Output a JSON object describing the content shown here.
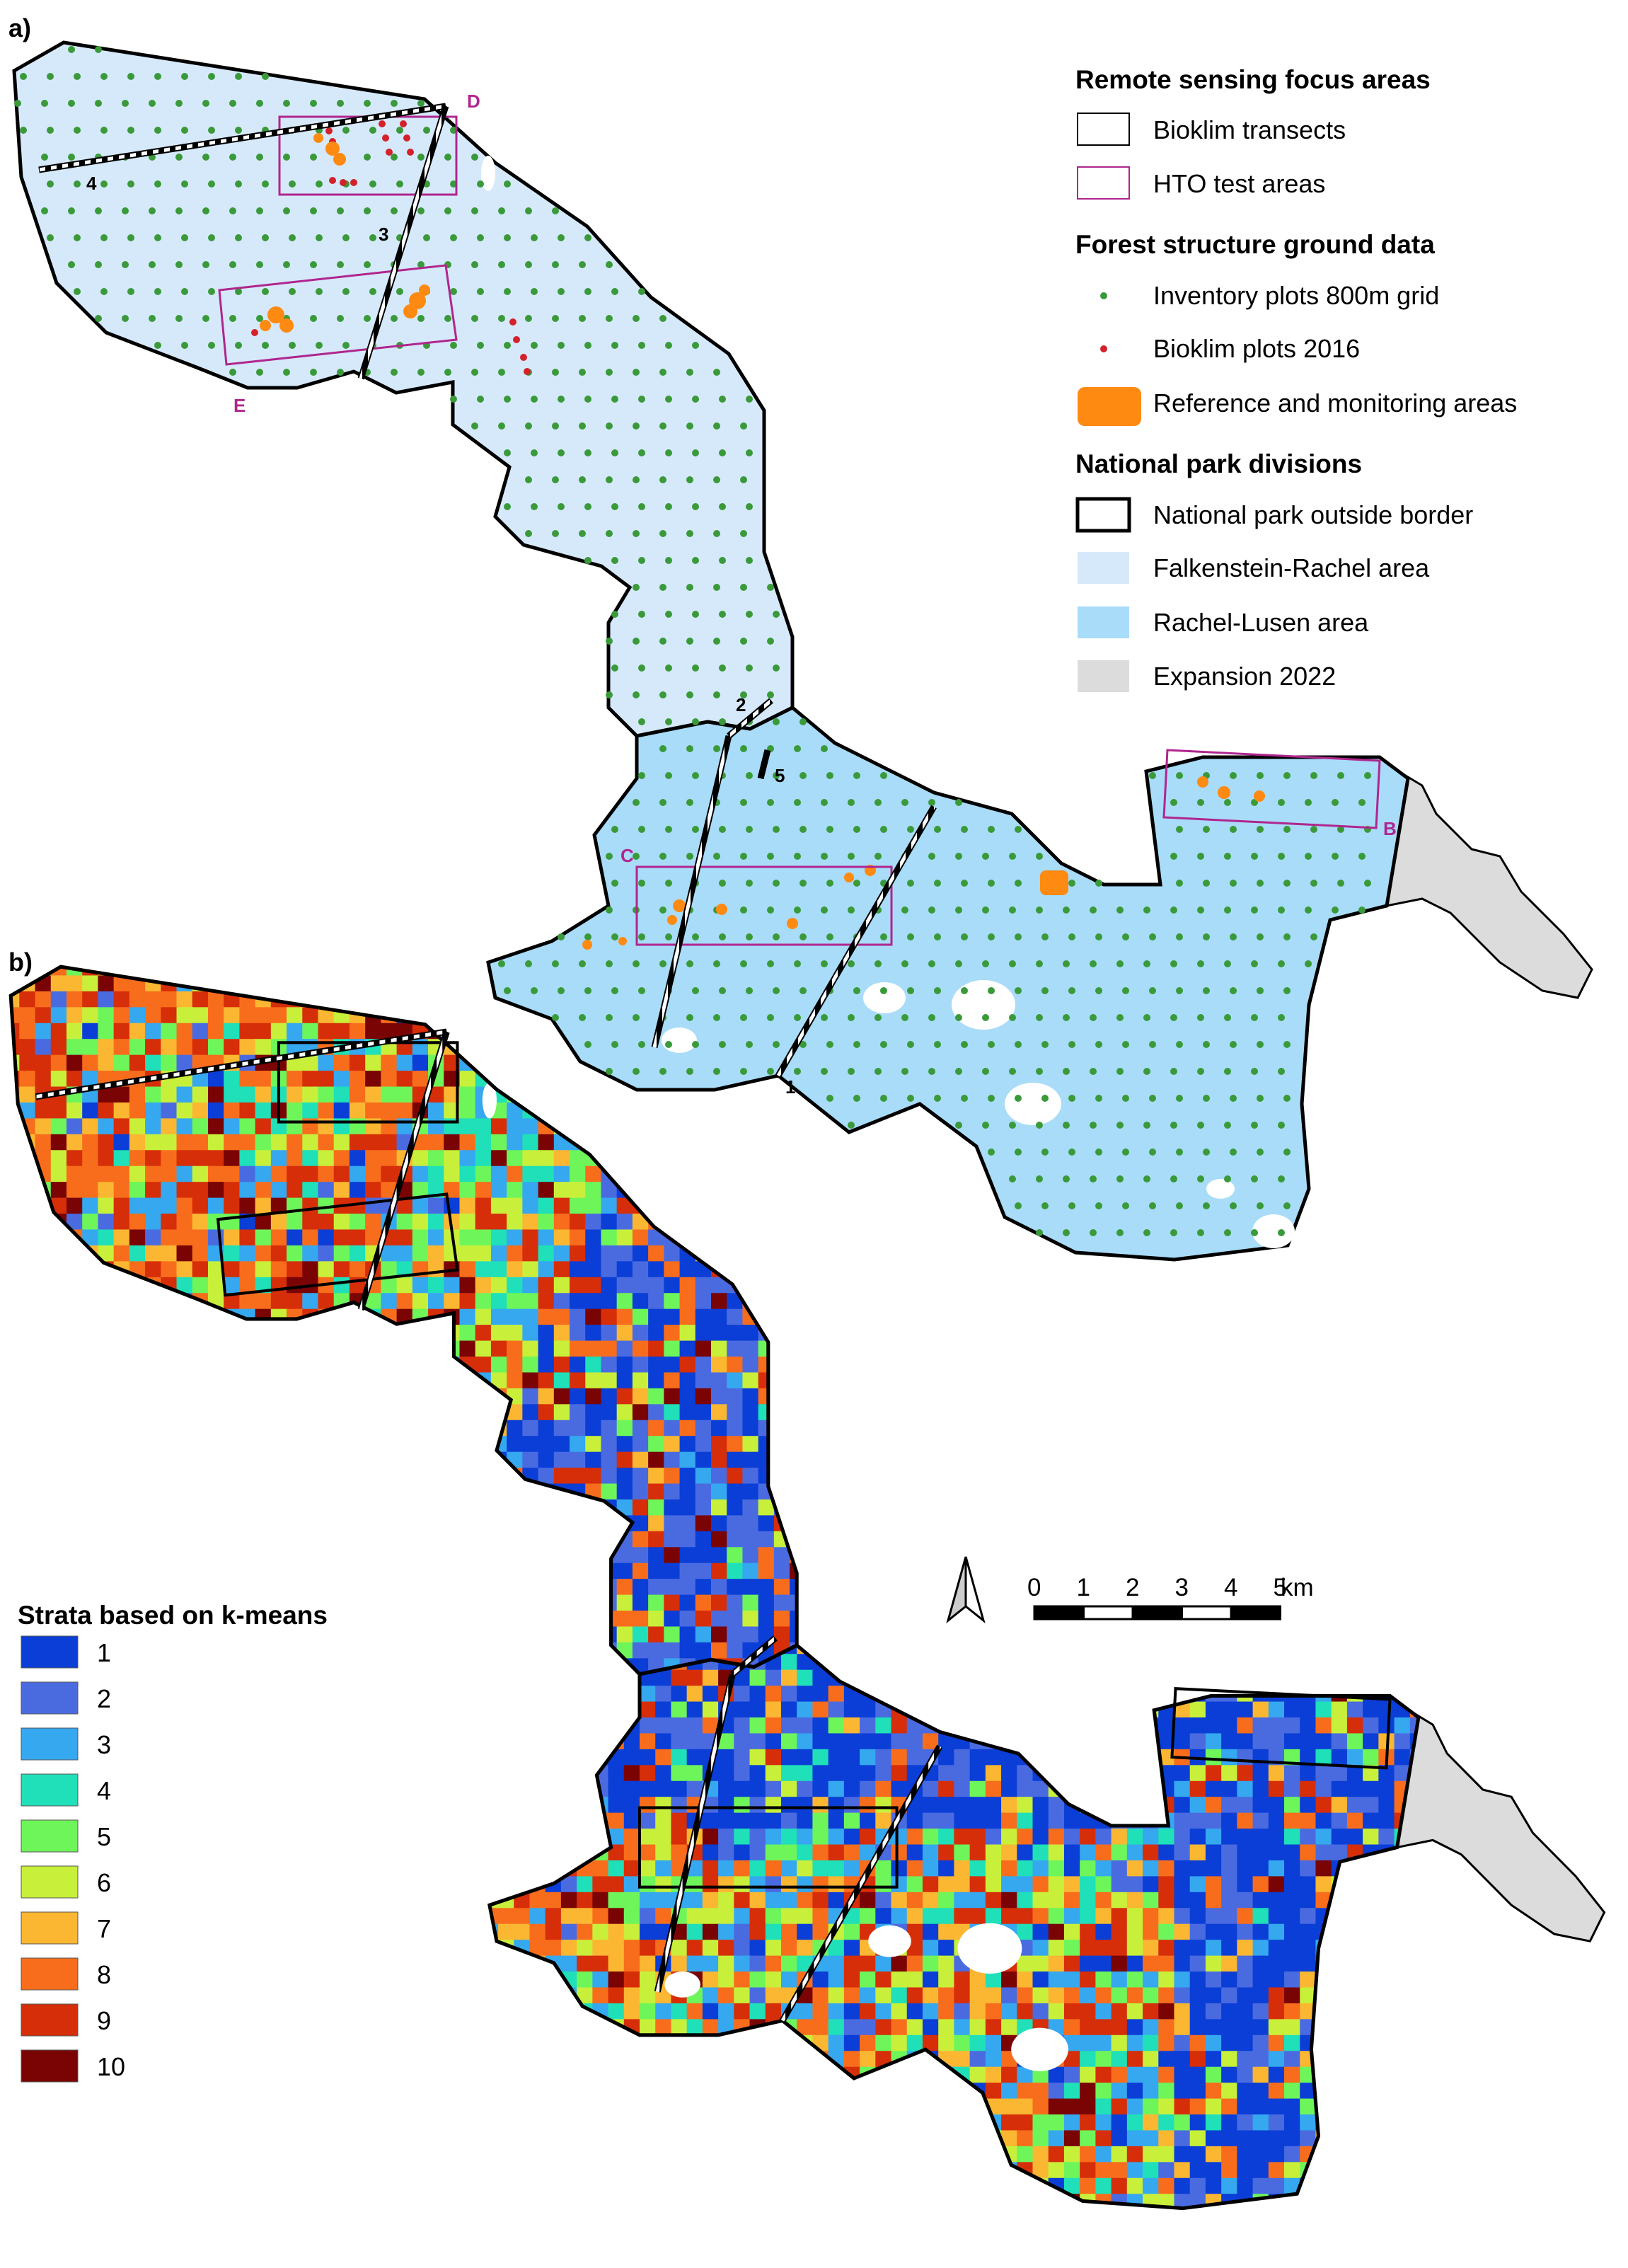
{
  "panel_a": {
    "label": "a)",
    "transect_labels": [
      "1",
      "2",
      "3",
      "4",
      "5"
    ],
    "area_labels": [
      "B",
      "C",
      "D",
      "E"
    ]
  },
  "panel_b": {
    "label": "b)"
  },
  "legend": {
    "group1": {
      "title": "Remote sensing focus areas",
      "items": [
        "Bioklim transects",
        "HTO test areas"
      ]
    },
    "group2": {
      "title": "Forest structure ground data",
      "items": [
        "Inventory plots 800m grid",
        "Bioklim plots 2016",
        "Reference and monitoring areas"
      ]
    },
    "group3": {
      "title": "National park divisions",
      "items": [
        "National park outside border",
        "Falkenstein-Rachel area",
        "Rachel-Lusen area",
        "Expansion 2022"
      ]
    }
  },
  "colors": {
    "falkenstein": "#d6e9fb",
    "rachel_lusen": "#a9dcf8",
    "expansion": "#dcdcdc",
    "inventory": "#3a9a3a",
    "bioklim": "#d3222a",
    "reference": "#ff8a12",
    "hto": "#b0268f"
  },
  "strata": {
    "title": "Strata based on k-means",
    "items": [
      {
        "label": "1",
        "color": "#0a3ed6"
      },
      {
        "label": "2",
        "color": "#4a6be0"
      },
      {
        "label": "3",
        "color": "#35a8f0"
      },
      {
        "label": "4",
        "color": "#1fe0b8"
      },
      {
        "label": "5",
        "color": "#6ef55a"
      },
      {
        "label": "6",
        "color": "#c8f03a"
      },
      {
        "label": "7",
        "color": "#fbb732"
      },
      {
        "label": "8",
        "color": "#f86d1c"
      },
      {
        "label": "9",
        "color": "#d62e08"
      },
      {
        "label": "10",
        "color": "#7a0404"
      }
    ]
  },
  "scalebar": {
    "ticks": [
      "0",
      "1",
      "2",
      "3",
      "4",
      "5"
    ],
    "unit": "km"
  }
}
